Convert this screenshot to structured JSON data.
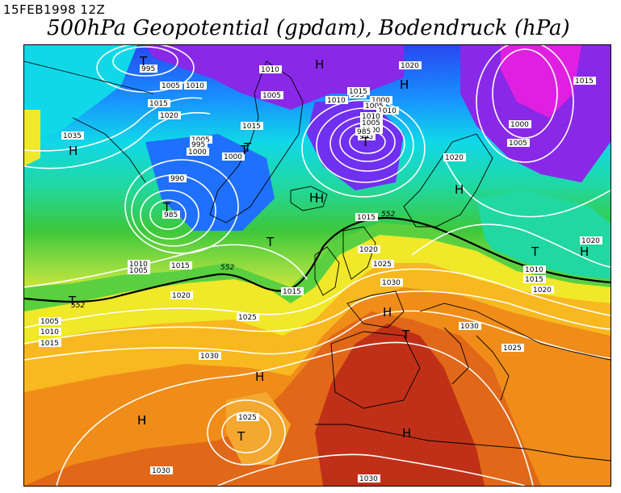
{
  "header": {
    "date": "15FEB1998 12Z",
    "title": "500hPa Geopotential (gpdam), Bodendruck (hPa)"
  },
  "colors": {
    "background": "#ffffff",
    "isobar": "#ffffff",
    "coast": "#000000",
    "band_magenta": "#e020e0",
    "band_purple": "#8a28e8",
    "band_blue": "#2848f0",
    "band_lightblue": "#1890ff",
    "band_cyan": "#10d8e8",
    "band_teal": "#20d8a0",
    "band_green": "#3cc83c",
    "band_lime": "#a8e040",
    "band_yellow": "#f0e828",
    "band_orange_light": "#f8b820",
    "band_orange": "#f08c18",
    "band_darkorange": "#e06818",
    "band_red": "#c03018"
  },
  "map": {
    "contour_552": {
      "label": "552"
    },
    "pressure_labels": [
      "995",
      "1005",
      "1010",
      "1015",
      "1020",
      "1035",
      "1010",
      "1005",
      "1015",
      "1010",
      "1005",
      "995",
      "1000",
      "990",
      "985",
      "1000",
      "1000",
      "995",
      "1005",
      "1010",
      "1015",
      "1010",
      "1005",
      "1000",
      "995",
      "985",
      "1020",
      "1000",
      "1005",
      "1015",
      "1020",
      "1015",
      "1020",
      "1025",
      "1030",
      "1030",
      "1025",
      "1020",
      "1010",
      "1015",
      "1020",
      "1005",
      "1010",
      "1015",
      "1020",
      "1025",
      "1030",
      "1025",
      "1030",
      "1030",
      "1015",
      "1010",
      "1005",
      "1015"
    ],
    "highs_lows": [
      "T",
      "H",
      "H",
      "H",
      "H",
      "T",
      "T",
      "T",
      "T",
      "H",
      "T",
      "T",
      "H",
      "H",
      "T",
      "H",
      "H",
      "T",
      "H",
      "T",
      "H",
      "H",
      "T"
    ],
    "contour_552_west": "552"
  }
}
